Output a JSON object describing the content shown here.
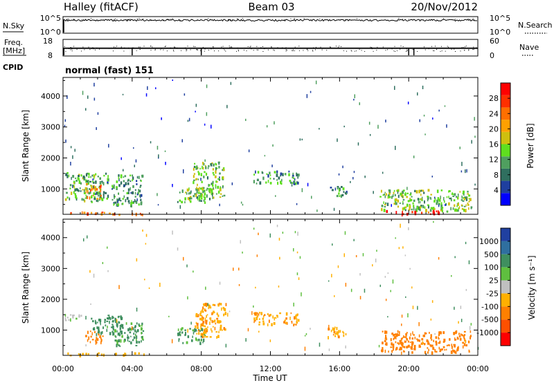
{
  "header": {
    "station": "Halley (fitACF)",
    "beam": "Beam 03",
    "date": "20/Nov/2012",
    "cpid_label": "CPID",
    "cpid_value": "normal (fast) 151"
  },
  "sky_panel": {
    "left_label": "N.Sky",
    "right_label": "N.Search",
    "ticks_left": [
      "10^5",
      "10^0"
    ],
    "ticks_right": [
      "10^5",
      "10^0"
    ]
  },
  "freq_panel": {
    "left_label_1": "Freq.",
    "left_label_2": "[MHz]",
    "right_label": "Nave",
    "ticks_left": [
      "18",
      "8"
    ],
    "ticks_right": [
      "60",
      "0"
    ]
  },
  "colors": {
    "power": [
      "#0000ff",
      "#1f3f9f",
      "#2f6f5f",
      "#4f9f5f",
      "#5fdf1f",
      "#cfbf0f",
      "#ffa000",
      "#ff6f00",
      "#ff2f00",
      "#ff0000"
    ],
    "velocity": [
      "#2040a0",
      "#2f6f9f",
      "#3f8f5f",
      "#5fbf3f",
      "#c0c0c0",
      "#ffb000",
      "#ff8000",
      "#ff5000",
      "#ff0000"
    ]
  },
  "chart_data": [
    {
      "type": "heatmap",
      "name": "power",
      "xlabel": "",
      "ylabel": "Slant Range [km]",
      "x_ticks": [
        "00:00",
        "04:00",
        "08:00",
        "12:00",
        "16:00",
        "20:00",
        "00:00"
      ],
      "xlim_hours": [
        0,
        24
      ],
      "ylim_km": [
        180,
        4600
      ],
      "y_ticks": [
        1000,
        2000,
        3000,
        4000
      ],
      "colorbar": {
        "label": "Power [dB]",
        "ticks": [
          4,
          8,
          12,
          16,
          20,
          24,
          28
        ],
        "range": [
          0,
          32
        ]
      },
      "echo_regions": [
        {
          "start_h": 0.1,
          "end_h": 2.6,
          "range_min_km": 600,
          "range_max_km": 1550,
          "level_db": 12
        },
        {
          "start_h": 1.3,
          "end_h": 2.2,
          "range_min_km": 700,
          "range_max_km": 1200,
          "level_db": 22
        },
        {
          "start_h": 2.8,
          "end_h": 4.6,
          "range_min_km": 500,
          "range_max_km": 1500,
          "level_db": 10
        },
        {
          "start_h": 6.6,
          "end_h": 8.2,
          "range_min_km": 600,
          "range_max_km": 1100,
          "level_db": 12
        },
        {
          "start_h": 7.5,
          "end_h": 9.3,
          "range_min_km": 700,
          "range_max_km": 1900,
          "level_db": 14
        },
        {
          "start_h": 11.0,
          "end_h": 13.6,
          "range_min_km": 1200,
          "range_max_km": 1600,
          "level_db": 10
        },
        {
          "start_h": 15.3,
          "end_h": 16.4,
          "range_min_km": 800,
          "range_max_km": 1100,
          "level_db": 9
        },
        {
          "start_h": 18.3,
          "end_h": 23.6,
          "range_min_km": 300,
          "range_max_km": 1000,
          "level_db": 14
        },
        {
          "start_h": 18.6,
          "end_h": 21.8,
          "range_min_km": 200,
          "range_max_km": 330,
          "level_db": 30
        },
        {
          "start_h": 0.2,
          "end_h": 4.8,
          "range_min_km": 200,
          "range_max_km": 280,
          "level_db": 24
        }
      ]
    },
    {
      "type": "heatmap",
      "name": "velocity",
      "xlabel": "Time UT",
      "ylabel": "Slant Range [km]",
      "x_ticks": [
        "00:00",
        "04:00",
        "08:00",
        "12:00",
        "16:00",
        "20:00",
        "00:00"
      ],
      "xlim_hours": [
        0,
        24
      ],
      "ylim_km": [
        180,
        4600
      ],
      "y_ticks": [
        1000,
        2000,
        3000,
        4000
      ],
      "colorbar": {
        "label": "Velocity [m s⁻¹]",
        "ticks": [
          "1000",
          "500",
          "100",
          "25",
          "-25",
          "-100",
          "-500",
          "-1000"
        ]
      },
      "echo_regions": [
        {
          "start_h": 0.1,
          "end_h": 1.2,
          "range_min_km": 1300,
          "range_max_km": 1550,
          "velocity_ms": 0
        },
        {
          "start_h": 1.2,
          "end_h": 2.3,
          "range_min_km": 600,
          "range_max_km": 1000,
          "velocity_ms": -300
        },
        {
          "start_h": 1.6,
          "end_h": 3.4,
          "range_min_km": 900,
          "range_max_km": 1500,
          "velocity_ms": 300
        },
        {
          "start_h": 2.8,
          "end_h": 4.6,
          "range_min_km": 500,
          "range_max_km": 1300,
          "velocity_ms": 150
        },
        {
          "start_h": 6.6,
          "end_h": 8.2,
          "range_min_km": 600,
          "range_max_km": 1100,
          "velocity_ms": 150
        },
        {
          "start_h": 7.6,
          "end_h": 9.4,
          "range_min_km": 800,
          "range_max_km": 1900,
          "velocity_ms": -80
        },
        {
          "start_h": 11.0,
          "end_h": 13.6,
          "range_min_km": 1200,
          "range_max_km": 1600,
          "velocity_ms": -80
        },
        {
          "start_h": 15.3,
          "end_h": 16.4,
          "range_min_km": 800,
          "range_max_km": 1200,
          "velocity_ms": -80
        },
        {
          "start_h": 18.3,
          "end_h": 23.6,
          "range_min_km": 300,
          "range_max_km": 1000,
          "velocity_ms": -300
        },
        {
          "start_h": 0.2,
          "end_h": 4.8,
          "range_min_km": 200,
          "range_max_km": 280,
          "velocity_ms": -60
        }
      ]
    }
  ]
}
